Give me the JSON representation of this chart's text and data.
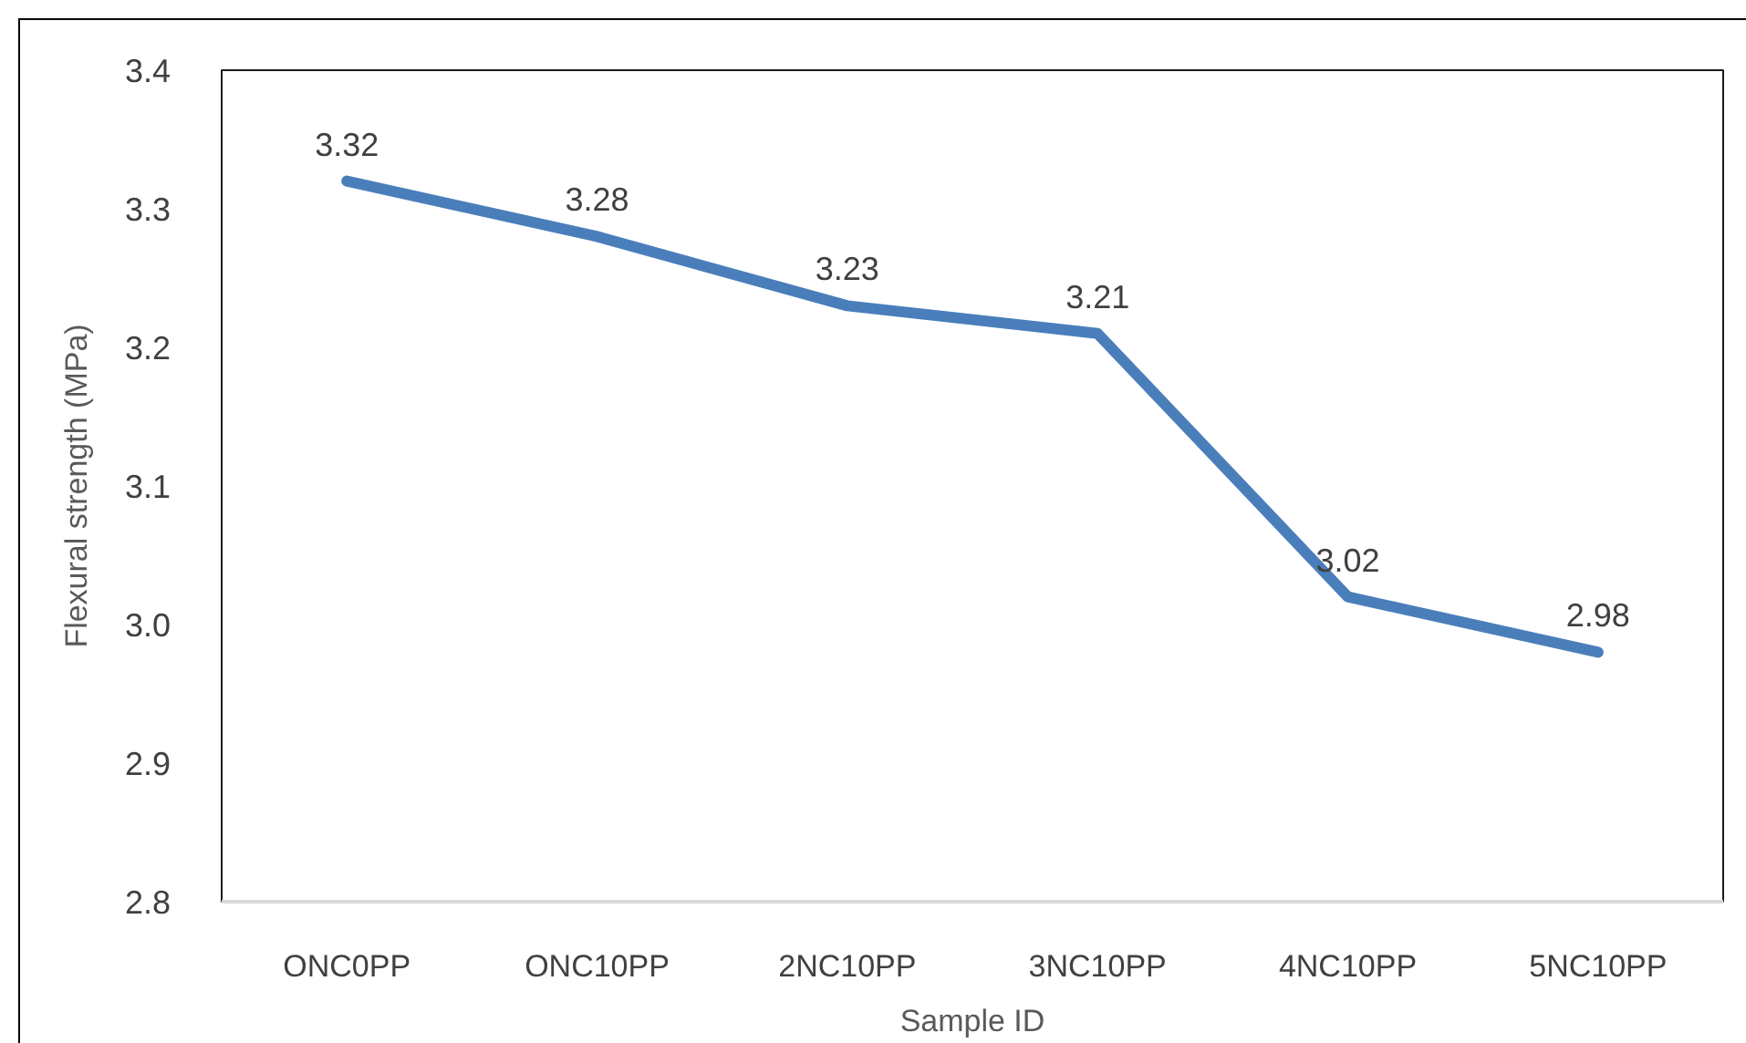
{
  "chart_data": {
    "type": "line",
    "xlabel": "Sample ID",
    "ylabel": "Flexural strength (MPa)",
    "categories": [
      "ONC0PP",
      "ONC10PP",
      "2NC10PP",
      "3NC10PP",
      "4NC10PP",
      "5NC10PP"
    ],
    "series": [
      {
        "color": "#4a7ebb",
        "values": [
          3.32,
          3.28,
          3.23,
          3.21,
          3.02,
          2.98
        ]
      }
    ],
    "ylim": [
      2.8,
      3.4
    ],
    "yticks": [
      2.8,
      2.9,
      {
        "value": 3.0,
        "label": "3.0"
      },
      3.1,
      3.2,
      3.3,
      3.4
    ],
    "data_labels": true
  }
}
